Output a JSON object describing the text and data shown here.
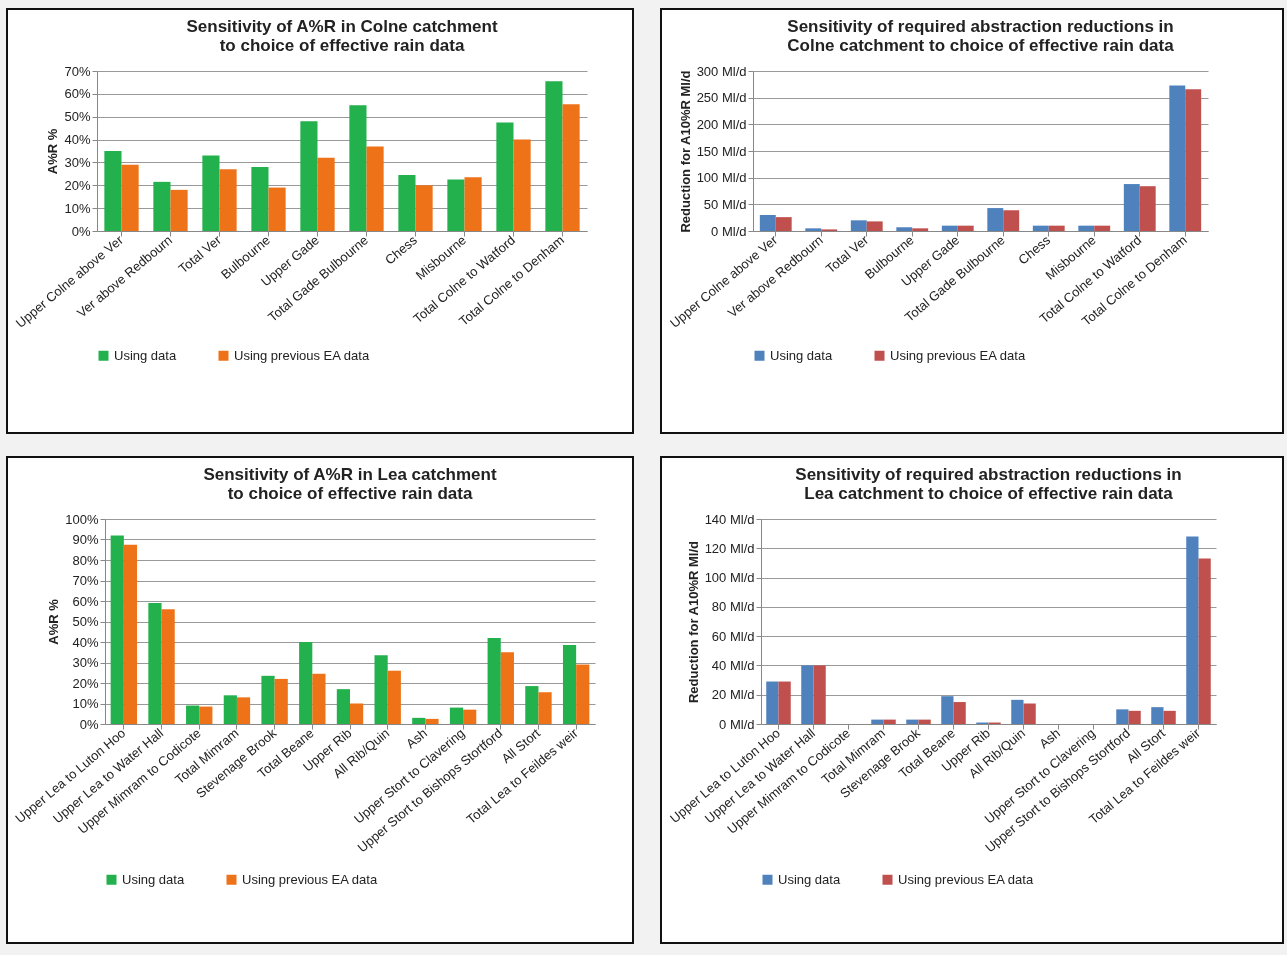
{
  "chart_data": [
    {
      "type": "bar",
      "title": "Sensitivity of A%R in Colne catchment to choice of effective rain data",
      "ylabel": "A%R %",
      "categories": [
        "Upper Colne above Ver",
        "Ver above Redbourn",
        "Total Ver",
        "Bulbourne",
        "Upper Gade",
        "Total Gade Bulbourne",
        "Chess",
        "Misbourne",
        "Total Colne to Watford",
        "Total Colne to Denham"
      ],
      "series": [
        {
          "name": "Using data",
          "color": "#22b14c",
          "values": [
            35,
            21.5,
            33,
            28,
            48,
            55,
            24.5,
            22.5,
            47.5,
            65.5
          ]
        },
        {
          "name": "Using previous EA data",
          "color": "#ee7218",
          "values": [
            29,
            18,
            27,
            19,
            32,
            37,
            20,
            23.5,
            40,
            55.5
          ]
        }
      ],
      "ylim": [
        0,
        70
      ],
      "yticks": [
        {
          "value": 0,
          "label": "0%"
        },
        {
          "value": 10,
          "label": "10%"
        },
        {
          "value": 20,
          "label": "20%"
        },
        {
          "value": 30,
          "label": "30%"
        },
        {
          "value": 40,
          "label": "40%"
        },
        {
          "value": 50,
          "label": "50%"
        },
        {
          "value": 60,
          "label": "60%"
        },
        {
          "value": 70,
          "label": "70%"
        }
      ],
      "grid": "y",
      "legend": "bottom"
    },
    {
      "type": "bar",
      "title": "Sensitivity of required abstraction reductions in Colne catchment to choice of effective rain data",
      "ylabel": "Reduction for A10%R Ml/d",
      "categories": [
        "Upper Colne above Ver",
        "Ver above Redbourn",
        "Total Ver",
        "Bulbourne",
        "Upper Gade",
        "Total Gade Bulbourne",
        "Chess",
        "Misbourne",
        "Total Colne to Watford",
        "Total Colne to Denham"
      ],
      "series": [
        {
          "name": "Using data",
          "color": "#4f81bd",
          "values": [
            30,
            5,
            20,
            7,
            10,
            43,
            10,
            10,
            88,
            273
          ]
        },
        {
          "name": "Using previous EA data",
          "color": "#c0504d",
          "values": [
            26,
            3,
            18,
            5,
            10,
            39,
            10,
            10,
            84,
            266
          ]
        }
      ],
      "ylim": [
        0,
        300
      ],
      "yticks": [
        {
          "value": 0,
          "label": "0 Ml/d"
        },
        {
          "value": 50,
          "label": "50 Ml/d"
        },
        {
          "value": 100,
          "label": "100 Ml/d"
        },
        {
          "value": 150,
          "label": "150 Ml/d"
        },
        {
          "value": 200,
          "label": "200 Ml/d"
        },
        {
          "value": 250,
          "label": "250 Ml/d"
        },
        {
          "value": 300,
          "label": "300 Ml/d"
        }
      ],
      "grid": "y",
      "legend": "bottom"
    },
    {
      "type": "bar",
      "title": "Sensitivity of A%R in Lea catchment to choice of effective rain data",
      "ylabel": "A%R %",
      "categories": [
        "Upper Lea to Luton Hoo",
        "Upper Lea to Water Hall",
        "Upper Mimram to Codicote",
        "Total Mimram",
        "Stevenage Brook",
        "Total Beane",
        "Upper Rib",
        "All Rib/Quin",
        "Ash",
        "Upper Stort to Clavering",
        "Upper Stort to Bishops Stortford",
        "All Stort",
        "Total Lea to Feildes weir"
      ],
      "series": [
        {
          "name": "Using data",
          "color": "#22b14c",
          "values": [
            92,
            59,
            9,
            14,
            23.5,
            40,
            17,
            33.5,
            3,
            8,
            42,
            18.5,
            38.5
          ]
        },
        {
          "name": "Using previous EA data",
          "color": "#ee7218",
          "values": [
            87.5,
            56,
            8.5,
            13,
            22,
            24.5,
            10,
            26,
            2.5,
            7,
            35,
            15.5,
            29
          ]
        }
      ],
      "ylim": [
        0,
        100
      ],
      "yticks": [
        {
          "value": 0,
          "label": "0%"
        },
        {
          "value": 10,
          "label": "10%"
        },
        {
          "value": 20,
          "label": "20%"
        },
        {
          "value": 30,
          "label": "30%"
        },
        {
          "value": 40,
          "label": "40%"
        },
        {
          "value": 50,
          "label": "50%"
        },
        {
          "value": 60,
          "label": "60%"
        },
        {
          "value": 70,
          "label": "70%"
        },
        {
          "value": 80,
          "label": "80%"
        },
        {
          "value": 90,
          "label": "90%"
        },
        {
          "value": 100,
          "label": "100%"
        }
      ],
      "grid": "y",
      "legend": "bottom"
    },
    {
      "type": "bar",
      "title": "Sensitivity of required abstraction reductions in Lea catchment to choice of effective rain data",
      "ylabel": "Reduction for A10%R Ml/d",
      "categories": [
        "Upper Lea to Luton Hoo",
        "Upper Lea to Water Hall",
        "Upper Mimram to Codicote",
        "Total Mimram",
        "Stevenage Brook",
        "Total Beane",
        "Upper Rib",
        "All Rib/Quin",
        "Ash",
        "Upper Stort to Clavering",
        "Upper Stort to Bishops Stortford",
        "All Stort",
        "Total Lea to Feildes weir"
      ],
      "series": [
        {
          "name": "Using data",
          "color": "#4f81bd",
          "values": [
            29,
            40,
            0,
            3,
            3,
            19,
            1,
            16.5,
            0,
            0,
            10,
            11.5,
            128
          ]
        },
        {
          "name": "Using previous EA data",
          "color": "#c0504d",
          "values": [
            29,
            40,
            0,
            3,
            3,
            15,
            1,
            14,
            0,
            0,
            9,
            9,
            113
          ]
        }
      ],
      "ylim": [
        0,
        140
      ],
      "yticks": [
        {
          "value": 0,
          "label": "0 Ml/d"
        },
        {
          "value": 20,
          "label": "20 Ml/d"
        },
        {
          "value": 40,
          "label": "40 Ml/d"
        },
        {
          "value": 60,
          "label": "60 Ml/d"
        },
        {
          "value": 80,
          "label": "80 Ml/d"
        },
        {
          "value": 100,
          "label": "100 Ml/d"
        },
        {
          "value": 120,
          "label": "120 Ml/d"
        },
        {
          "value": 140,
          "label": "140 Ml/d"
        }
      ],
      "grid": "y",
      "legend": "bottom"
    }
  ]
}
